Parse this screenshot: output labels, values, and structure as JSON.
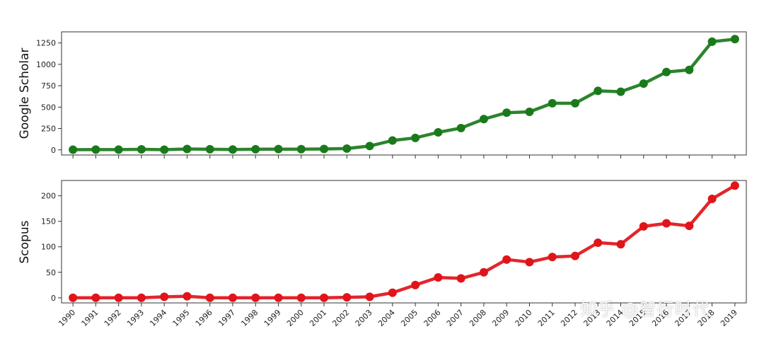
{
  "watermark": "知乎 @智行时代",
  "chart_data": [
    {
      "type": "line",
      "ylabel": "Google Scholar",
      "color": "#1a7a1a",
      "ylim": [
        -60,
        1380
      ],
      "yticks": [
        0,
        250,
        500,
        750,
        1000,
        1250
      ],
      "x": [
        "1990",
        "1991",
        "1992",
        "1993",
        "1994",
        "1995",
        "1996",
        "1997",
        "1998",
        "1999",
        "2000",
        "2001",
        "2002",
        "2003",
        "2004",
        "2005",
        "2006",
        "2007",
        "2008",
        "2009",
        "2010",
        "2011",
        "2012",
        "2013",
        "2014",
        "2015",
        "2016",
        "2017",
        "2018",
        "2019"
      ],
      "values": [
        2,
        3,
        3,
        6,
        2,
        10,
        7,
        4,
        7,
        9,
        8,
        10,
        15,
        45,
        110,
        140,
        205,
        255,
        360,
        435,
        445,
        545,
        545,
        690,
        680,
        775,
        910,
        935,
        1265,
        1295
      ],
      "grid": false
    },
    {
      "type": "line",
      "ylabel": "Scopus",
      "color": "#e0141a",
      "ylim": [
        -10,
        230
      ],
      "yticks": [
        0,
        50,
        100,
        150,
        200
      ],
      "x": [
        "1990",
        "1991",
        "1992",
        "1993",
        "1994",
        "1995",
        "1996",
        "1997",
        "1998",
        "1999",
        "2000",
        "2001",
        "2002",
        "2003",
        "2004",
        "2005",
        "2006",
        "2007",
        "2008",
        "2009",
        "2010",
        "2011",
        "2012",
        "2013",
        "2014",
        "2015",
        "2016",
        "2017",
        "2018",
        "2019"
      ],
      "values": [
        0,
        0,
        0,
        0,
        2,
        3,
        0,
        0,
        0,
        0,
        0,
        0,
        1,
        2,
        10,
        25,
        40,
        38,
        50,
        75,
        70,
        80,
        82,
        108,
        105,
        140,
        146,
        141,
        194,
        220
      ],
      "grid": false
    }
  ]
}
